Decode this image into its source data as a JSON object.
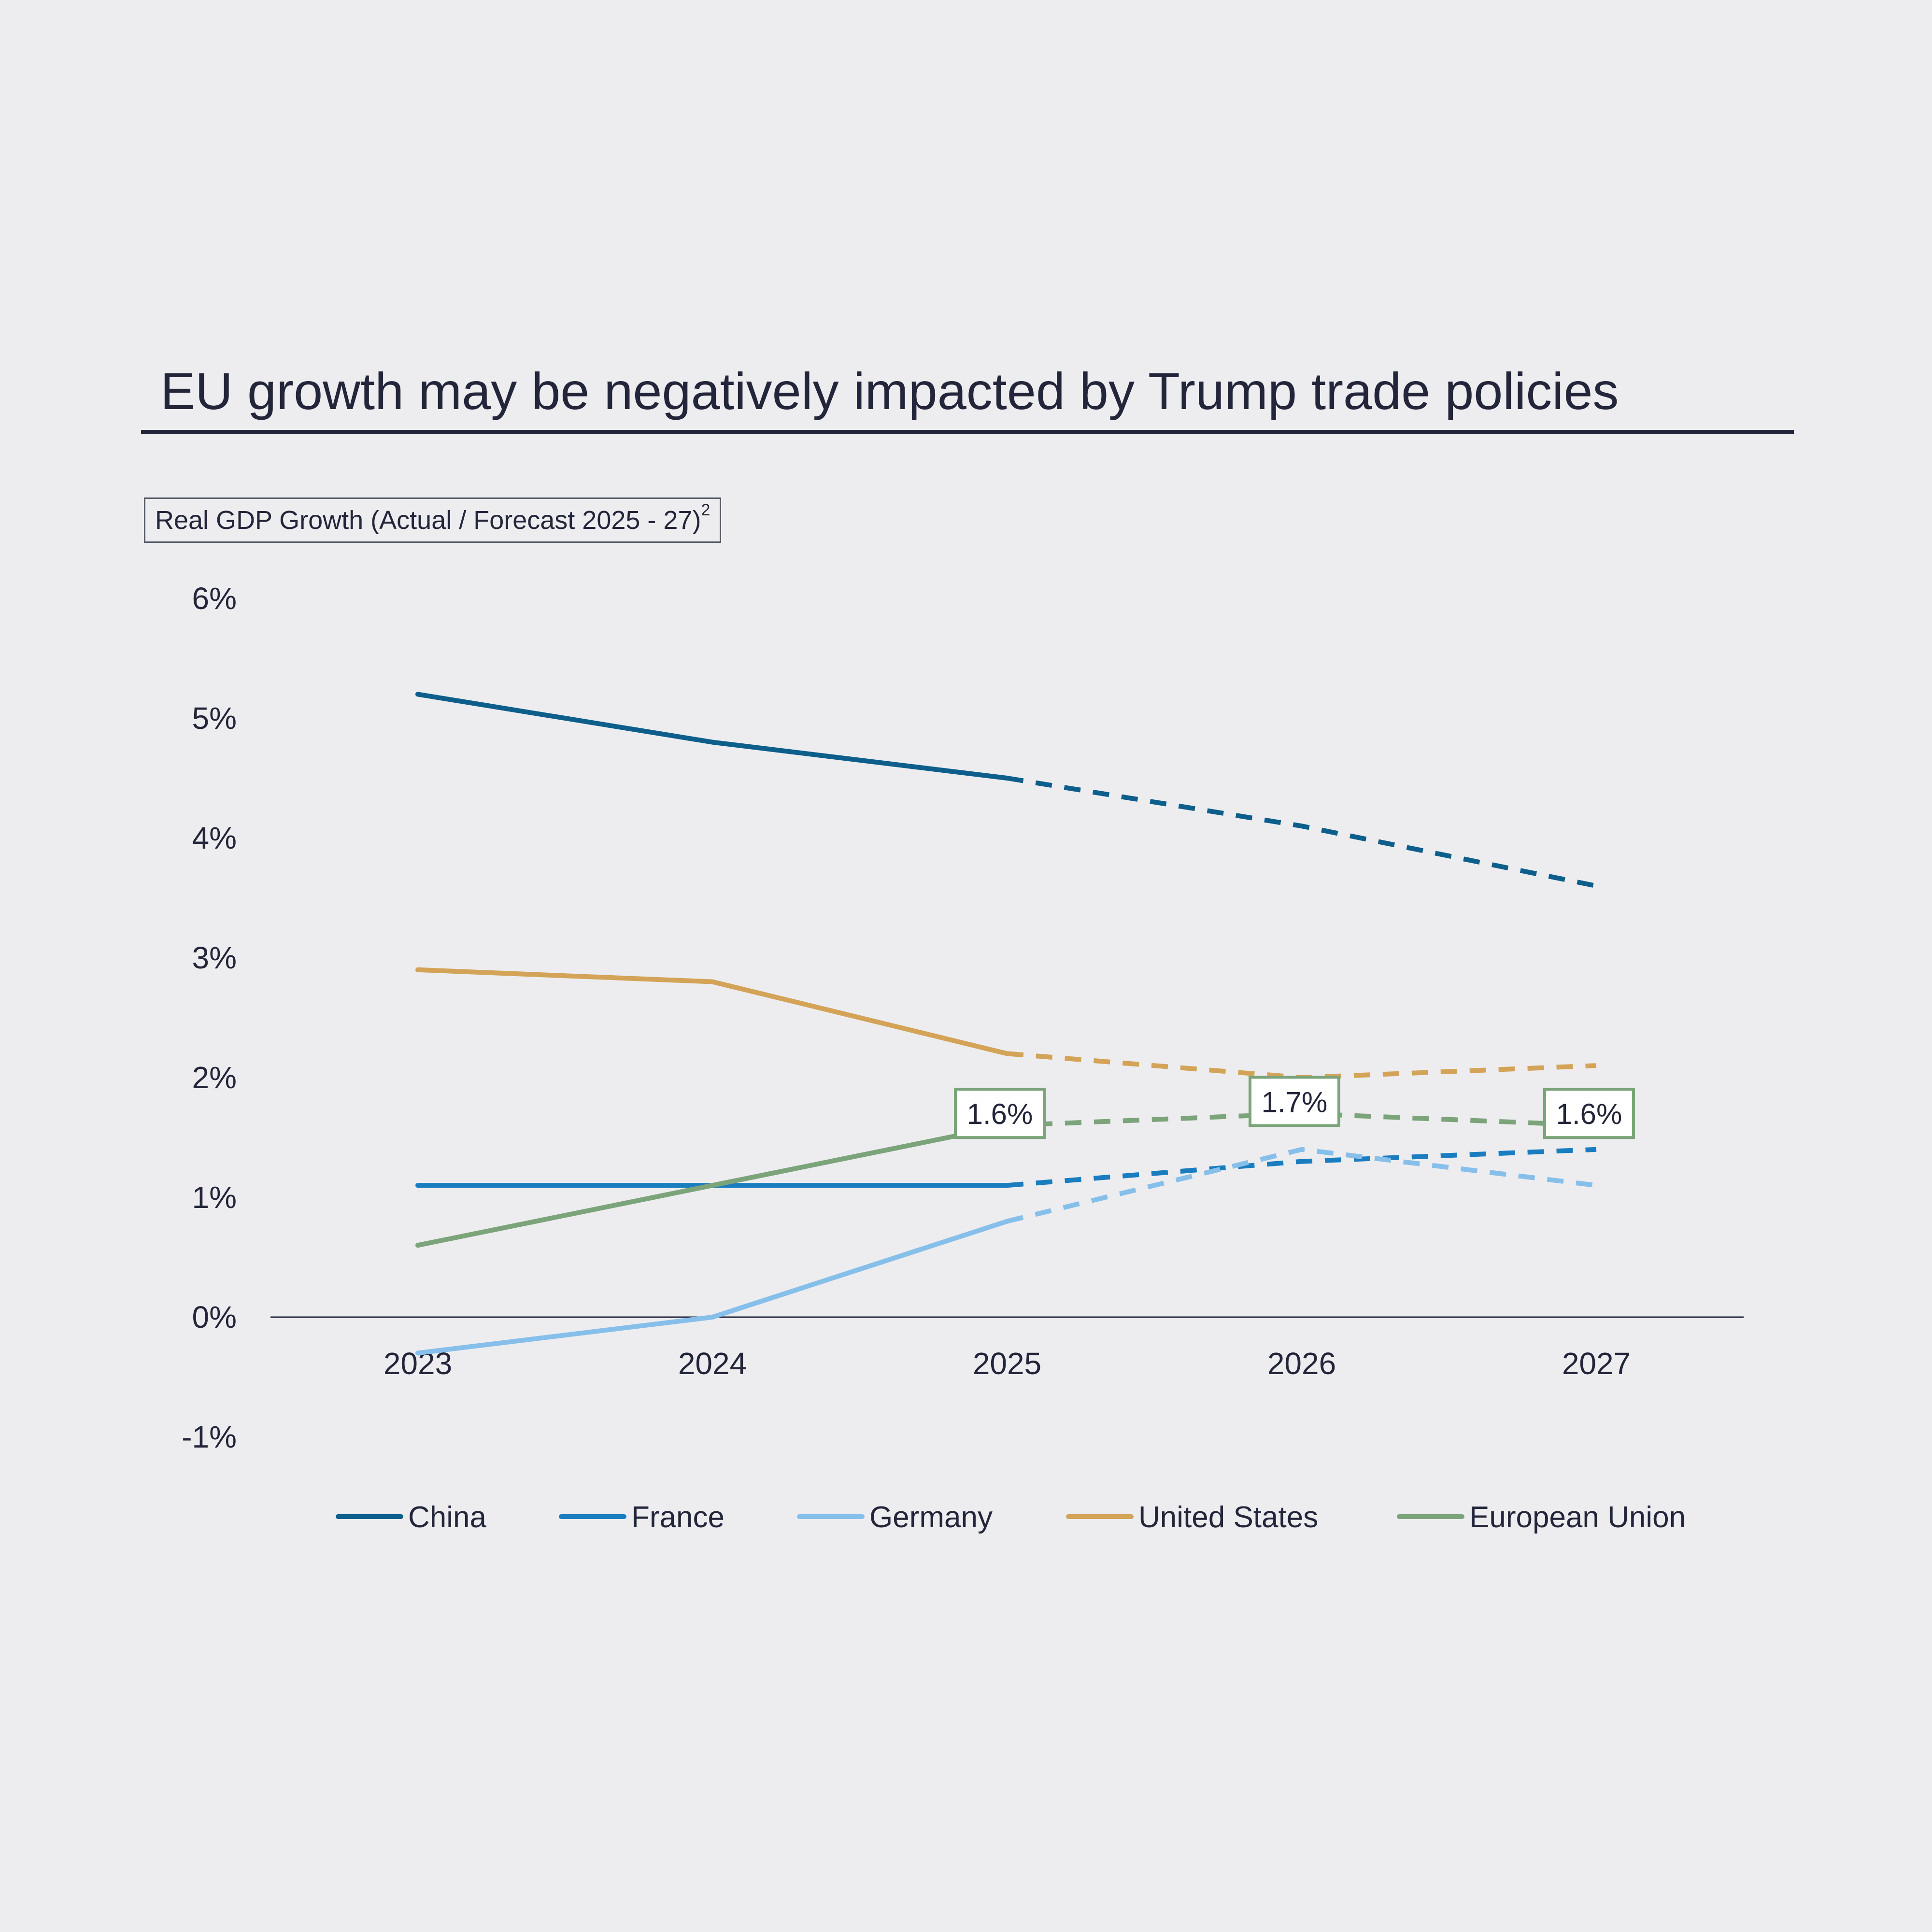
{
  "header": {
    "title": "EU growth may be negatively impacted by Trump trade policies"
  },
  "chart_data": {
    "type": "line",
    "subtitle": "Real GDP Growth (Actual / Forecast 2025 - 27)",
    "subtitle_superscript": "2",
    "x": [
      "2023",
      "2024",
      "2025",
      "2026",
      "2027"
    ],
    "ylim": [
      -1,
      6
    ],
    "yticks": [
      "6%",
      "5%",
      "4%",
      "3%",
      "2%",
      "1%",
      "0%",
      "-1%"
    ],
    "ytick_values": [
      6,
      5,
      4,
      3,
      2,
      1,
      0,
      -1
    ],
    "forecast_start": "2025",
    "grid": false,
    "legend_position": "bottom",
    "series": [
      {
        "name": "China",
        "color": "#0e5e8c",
        "values": [
          5.2,
          4.8,
          4.5,
          4.1,
          3.6
        ]
      },
      {
        "name": "France",
        "color": "#1a7dbf",
        "values": [
          1.1,
          1.1,
          1.1,
          1.3,
          1.4
        ]
      },
      {
        "name": "Germany",
        "color": "#86bfea",
        "values": [
          -0.3,
          0.0,
          0.8,
          1.4,
          1.1
        ]
      },
      {
        "name": "United States",
        "color": "#d3a357",
        "values": [
          2.9,
          2.8,
          2.2,
          2.0,
          2.1
        ]
      },
      {
        "name": "European Union",
        "color": "#7ca47a",
        "values": [
          0.6,
          1.1,
          1.6,
          1.7,
          1.6
        ]
      }
    ],
    "annotations": [
      {
        "series": "European Union",
        "x": "2025",
        "label": "1.6%"
      },
      {
        "series": "European Union",
        "x": "2026",
        "label": "1.7%"
      },
      {
        "series": "European Union",
        "x": "2027",
        "label": "1.6%"
      }
    ]
  }
}
